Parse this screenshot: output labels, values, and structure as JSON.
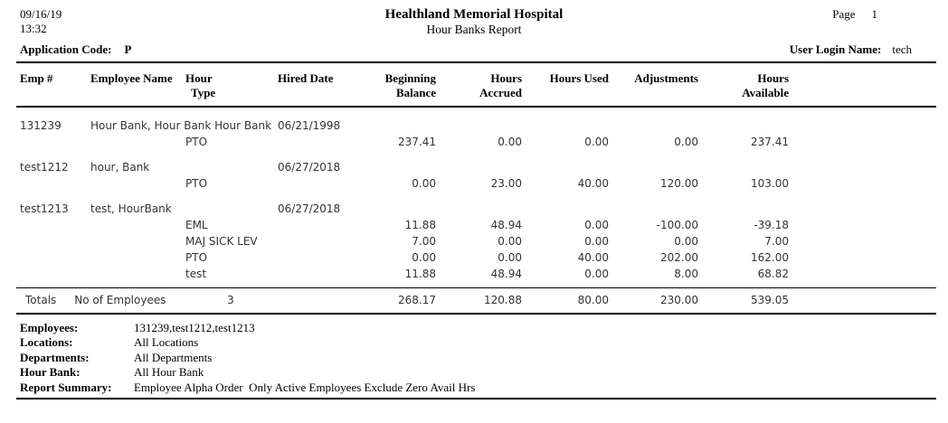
{
  "colors": {
    "background": "#ffffff",
    "text": "#000000",
    "data_text": "#333333",
    "rule": "#000000"
  },
  "meta": {
    "date": "09/16/19",
    "time": "13:32",
    "page_label": "Page",
    "page_number": "1"
  },
  "header": {
    "hospital_name": "Healthland Memorial Hospital",
    "report_title": "Hour Banks Report",
    "application_code_label": "Application Code:",
    "application_code": "P",
    "user_login_label": "User Login Name:",
    "user_login": "tech"
  },
  "table": {
    "columns": [
      {
        "line1": "Emp #",
        "line2": ""
      },
      {
        "line1": "Employee Name",
        "line2": ""
      },
      {
        "line1": "Hour",
        "line2": "Type"
      },
      {
        "line1": "Hired Date",
        "line2": ""
      },
      {
        "line1": "Beginning",
        "line2": "Balance"
      },
      {
        "line1": "Hours",
        "line2": "Accrued"
      },
      {
        "line1": "Hours Used",
        "line2": ""
      },
      {
        "line1": "Adjustments",
        "line2": ""
      },
      {
        "line1": "Hours",
        "line2": "Available"
      }
    ],
    "employees": [
      {
        "emp_no": "131239",
        "name": "Hour Bank, Hour Bank Hour Bank",
        "hired_date": "06/21/1998",
        "banks": [
          {
            "hour_type": "PTO",
            "beginning_balance": "237.41",
            "hours_accrued": "0.00",
            "hours_used": "0.00",
            "adjustments": "0.00",
            "hours_available": "237.41"
          }
        ]
      },
      {
        "emp_no": "test1212",
        "name": "hour, Bank",
        "hired_date": "06/27/2018",
        "banks": [
          {
            "hour_type": "PTO",
            "beginning_balance": "0.00",
            "hours_accrued": "23.00",
            "hours_used": "40.00",
            "adjustments": "120.00",
            "hours_available": "103.00"
          }
        ]
      },
      {
        "emp_no": "test1213",
        "name": "test, HourBank",
        "hired_date": "06/27/2018",
        "banks": [
          {
            "hour_type": "EML",
            "beginning_balance": "11.88",
            "hours_accrued": "48.94",
            "hours_used": "0.00",
            "adjustments": "-100.00",
            "hours_available": "-39.18"
          },
          {
            "hour_type": "MAJ SICK LEV",
            "beginning_balance": "7.00",
            "hours_accrued": "0.00",
            "hours_used": "0.00",
            "adjustments": "0.00",
            "hours_available": "7.00"
          },
          {
            "hour_type": "PTO",
            "beginning_balance": "0.00",
            "hours_accrued": "0.00",
            "hours_used": "40.00",
            "adjustments": "202.00",
            "hours_available": "162.00"
          },
          {
            "hour_type": "test",
            "beginning_balance": "11.88",
            "hours_accrued": "48.94",
            "hours_used": "0.00",
            "adjustments": "8.00",
            "hours_available": "68.82"
          }
        ]
      }
    ],
    "totals": {
      "label": "Totals",
      "employees_label": "No of Employees",
      "employee_count": "3",
      "beginning_balance": "268.17",
      "hours_accrued": "120.88",
      "hours_used": "80.00",
      "adjustments": "230.00",
      "hours_available": "539.05"
    }
  },
  "footer": {
    "rows": [
      {
        "key": "employees",
        "label": "Employees:",
        "value": "131239,test1212,test1213"
      },
      {
        "key": "locations",
        "label": "Locations:",
        "value": "All Locations"
      },
      {
        "key": "departments",
        "label": "Departments:",
        "value": "All Departments"
      },
      {
        "key": "hour-bank",
        "label": "Hour Bank:",
        "value": "All Hour Bank"
      },
      {
        "key": "report-summary",
        "label": "Report Summary:",
        "value": "Employee Alpha Order  Only Active Employees Exclude Zero Avail Hrs"
      }
    ]
  }
}
